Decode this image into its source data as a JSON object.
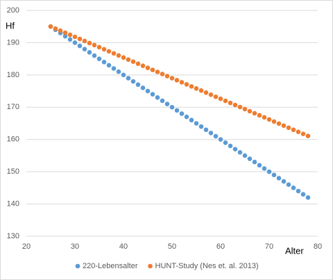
{
  "chart_data": {
    "type": "scatter",
    "x_label": "Alter",
    "y_label": "Hf",
    "x": [
      25,
      26,
      27,
      28,
      29,
      30,
      31,
      32,
      33,
      34,
      35,
      36,
      37,
      38,
      39,
      40,
      41,
      42,
      43,
      44,
      45,
      46,
      47,
      48,
      49,
      50,
      51,
      52,
      53,
      54,
      55,
      56,
      57,
      58,
      59,
      60,
      61,
      62,
      63,
      64,
      65,
      66,
      67,
      68,
      69,
      70,
      71,
      72,
      73,
      74,
      75,
      76,
      77,
      78
    ],
    "series": [
      {
        "name": "220-Lebensalter",
        "color": "#5b9bd5",
        "values": [
          195,
          194,
          193,
          192,
          191,
          190,
          189,
          188,
          187,
          186,
          185,
          184,
          183,
          182,
          181,
          180,
          179,
          178,
          177,
          176,
          175,
          174,
          173,
          172,
          171,
          170,
          169,
          168,
          167,
          166,
          165,
          164,
          163,
          162,
          161,
          160,
          159,
          158,
          157,
          156,
          155,
          154,
          153,
          152,
          151,
          150,
          149,
          148,
          147,
          146,
          145,
          144,
          143,
          142
        ]
      },
      {
        "name": "HUNT-Study (Nes et. al. 2013)",
        "color": "#ed7d31",
        "values": [
          195,
          194.36,
          193.72,
          193.08,
          192.44,
          191.8,
          191.16,
          190.52,
          189.88,
          189.24,
          188.6,
          187.96,
          187.32,
          186.68,
          186.04,
          185.4,
          184.76,
          184.12,
          183.48,
          182.84,
          182.2,
          181.56,
          180.92,
          180.28,
          179.64,
          179,
          178.36,
          177.72,
          177.08,
          176.44,
          175.8,
          175.16,
          174.52,
          173.88,
          173.24,
          172.6,
          171.96,
          171.32,
          170.68,
          170.04,
          169.4,
          168.76,
          168.12,
          167.48,
          166.84,
          166.2,
          165.56,
          164.92,
          164.28,
          163.64,
          163,
          162.36,
          161.72,
          161.08
        ]
      }
    ],
    "xlim": [
      20,
      80
    ],
    "xticks": [
      20,
      30,
      40,
      50,
      60,
      70,
      80
    ],
    "ylim": [
      130,
      200
    ],
    "yticks": [
      130,
      140,
      150,
      160,
      170,
      180,
      190,
      200
    ],
    "grid": true,
    "legend": "bottom"
  }
}
